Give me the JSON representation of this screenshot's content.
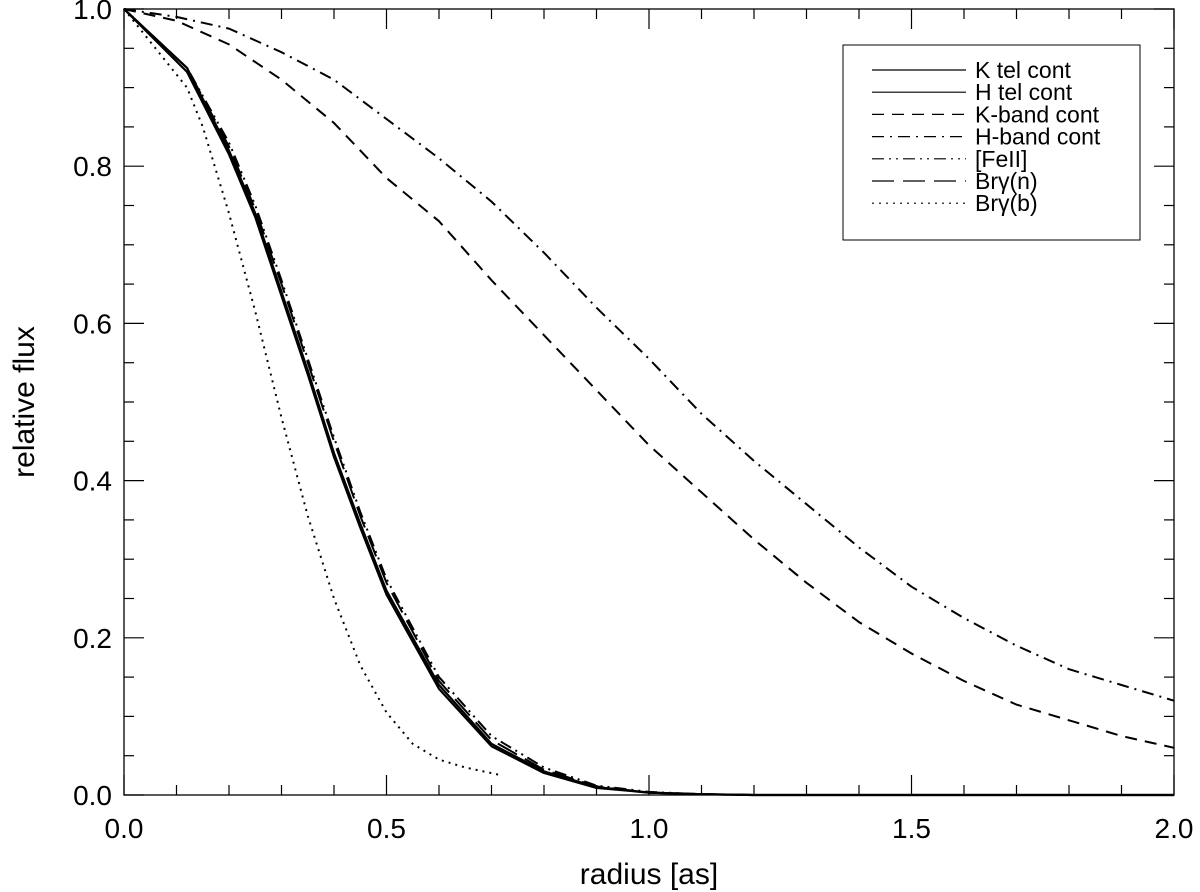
{
  "chart_data": {
    "type": "line",
    "xlabel": "radius [as]",
    "ylabel": "relative flux",
    "xlim": [
      0.0,
      2.0
    ],
    "ylim": [
      0.0,
      1.0
    ],
    "xticks": [
      "0.0",
      "0.5",
      "1.0",
      "1.5",
      "2.0"
    ],
    "yticks": [
      "0.0",
      "0.2",
      "0.4",
      "0.6",
      "0.8",
      "1.0"
    ],
    "legend_position": "top-right",
    "grid": false,
    "series": [
      {
        "name": "K tel cont",
        "style": "solid",
        "x": [
          0.0,
          0.12,
          0.2,
          0.25,
          0.3,
          0.35,
          0.4,
          0.45,
          0.5,
          0.6,
          0.7,
          0.8,
          0.9,
          1.0,
          1.1,
          1.2,
          1.4,
          1.6,
          1.8,
          2.0
        ],
        "y": [
          1.0,
          0.925,
          0.82,
          0.74,
          0.64,
          0.54,
          0.435,
          0.345,
          0.26,
          0.14,
          0.065,
          0.03,
          0.01,
          0.003,
          0.001,
          0.0,
          0.0,
          0.0,
          0.0,
          0.0
        ]
      },
      {
        "name": "H tel cont",
        "style": "solid",
        "x": [
          0.0,
          0.12,
          0.2,
          0.25,
          0.3,
          0.35,
          0.4,
          0.45,
          0.5,
          0.6,
          0.7,
          0.8,
          0.9,
          1.0,
          1.1,
          1.2,
          1.4,
          1.6,
          1.8,
          2.0
        ],
        "y": [
          1.0,
          0.92,
          0.815,
          0.735,
          0.635,
          0.535,
          0.43,
          0.34,
          0.255,
          0.135,
          0.062,
          0.028,
          0.009,
          0.003,
          0.001,
          0.0,
          0.0,
          0.0,
          0.0,
          0.0
        ]
      },
      {
        "name": "K-band cont",
        "style": "dashed",
        "x": [
          0.0,
          0.1,
          0.2,
          0.3,
          0.4,
          0.5,
          0.6,
          0.7,
          0.8,
          0.9,
          1.0,
          1.1,
          1.2,
          1.3,
          1.4,
          1.5,
          1.6,
          1.7,
          1.8,
          1.9,
          2.0
        ],
        "y": [
          1.0,
          0.985,
          0.955,
          0.91,
          0.855,
          0.785,
          0.73,
          0.655,
          0.585,
          0.515,
          0.445,
          0.385,
          0.325,
          0.27,
          0.22,
          0.18,
          0.145,
          0.115,
          0.095,
          0.075,
          0.06
        ]
      },
      {
        "name": "H-band cont",
        "style": "dashdot",
        "x": [
          0.0,
          0.1,
          0.2,
          0.3,
          0.4,
          0.5,
          0.6,
          0.7,
          0.8,
          0.9,
          1.0,
          1.1,
          1.2,
          1.3,
          1.4,
          1.5,
          1.6,
          1.7,
          1.8,
          1.9,
          2.0
        ],
        "y": [
          1.0,
          0.99,
          0.975,
          0.945,
          0.91,
          0.86,
          0.81,
          0.755,
          0.69,
          0.62,
          0.555,
          0.485,
          0.425,
          0.37,
          0.315,
          0.265,
          0.225,
          0.19,
          0.16,
          0.14,
          0.12
        ]
      },
      {
        "name": "[FeII]",
        "style": "dashdotdot",
        "x": [
          0.0,
          0.12,
          0.2,
          0.25,
          0.3,
          0.35,
          0.4,
          0.45,
          0.5,
          0.6,
          0.7,
          0.8,
          0.9,
          1.0,
          1.1,
          1.2,
          1.4,
          1.6,
          1.8,
          2.0
        ],
        "y": [
          1.0,
          0.925,
          0.83,
          0.75,
          0.655,
          0.555,
          0.455,
          0.36,
          0.275,
          0.15,
          0.075,
          0.035,
          0.012,
          0.004,
          0.001,
          0.0,
          0.0,
          0.0,
          0.0,
          0.0
        ]
      },
      {
        "name": "Brγ(n)",
        "style": "longdash",
        "x": [
          0.0,
          0.12,
          0.2,
          0.25,
          0.3,
          0.35,
          0.4,
          0.45,
          0.5,
          0.6,
          0.7,
          0.8,
          0.9,
          1.0,
          1.1,
          1.2,
          1.4,
          1.6,
          1.8,
          2.0
        ],
        "y": [
          1.0,
          0.925,
          0.825,
          0.745,
          0.65,
          0.55,
          0.45,
          0.355,
          0.27,
          0.145,
          0.07,
          0.032,
          0.011,
          0.003,
          0.001,
          0.0,
          0.0,
          0.0,
          0.0,
          0.0
        ]
      },
      {
        "name": "Brγ(b)",
        "style": "dotted",
        "x": [
          0.0,
          0.12,
          0.15,
          0.2,
          0.25,
          0.3,
          0.35,
          0.4,
          0.45,
          0.5,
          0.55,
          0.6,
          0.65,
          0.72
        ],
        "y": [
          1.0,
          0.9,
          0.85,
          0.74,
          0.615,
          0.48,
          0.355,
          0.25,
          0.165,
          0.105,
          0.065,
          0.045,
          0.035,
          0.025
        ]
      }
    ]
  }
}
